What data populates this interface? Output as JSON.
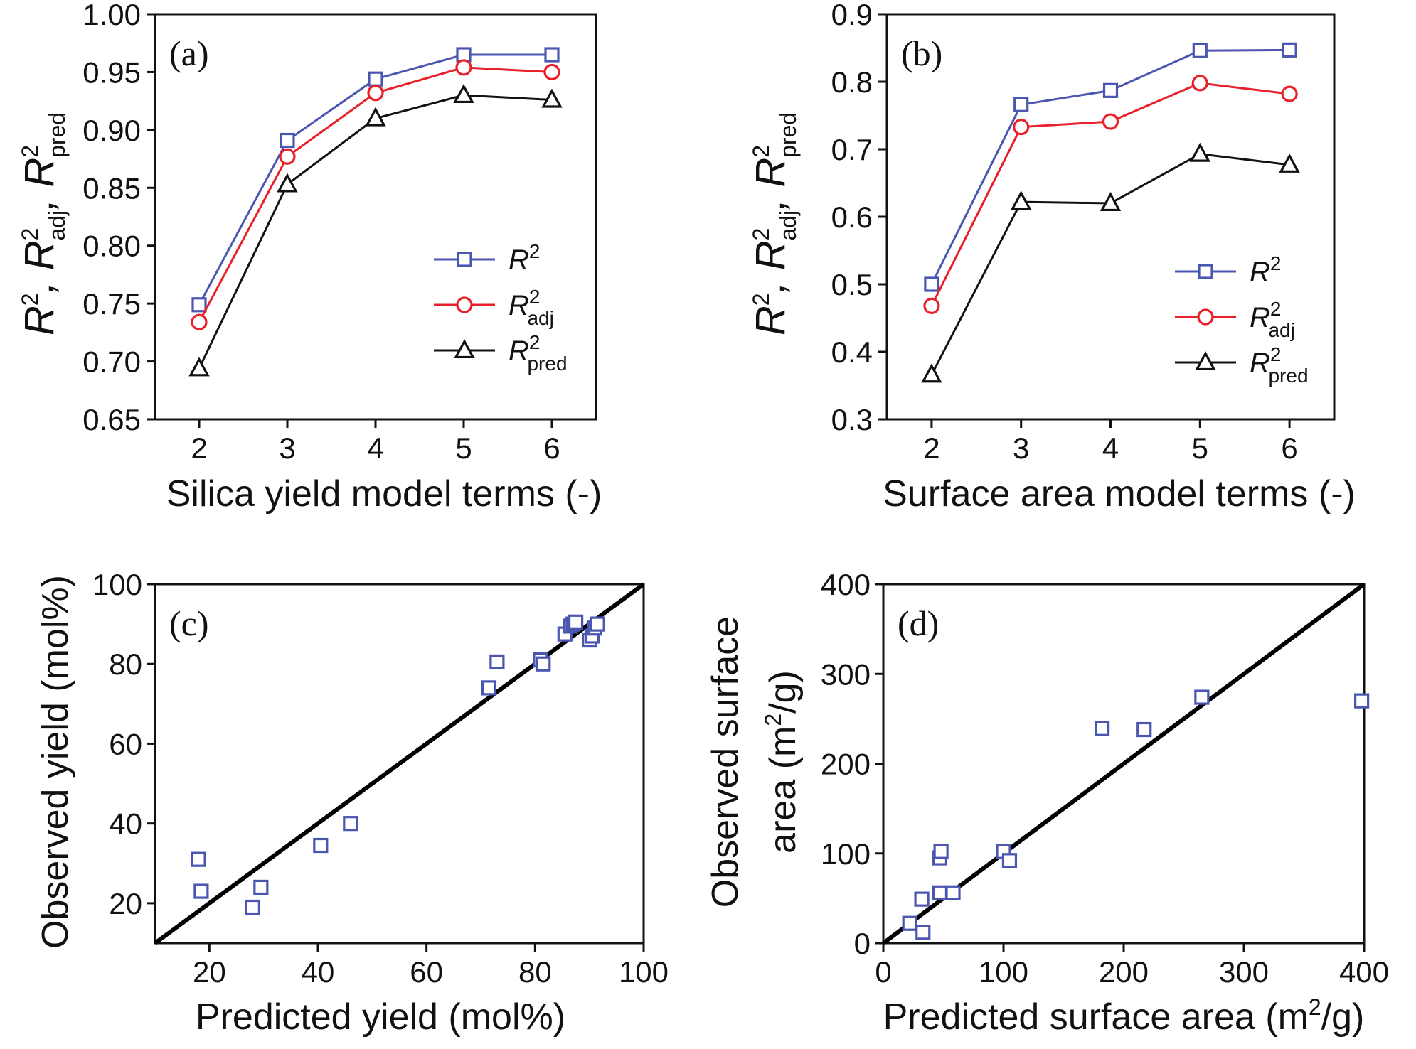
{
  "chart_data": [
    {
      "id": "a",
      "type": "line",
      "panel_label": "(a)",
      "xlabel": "Silica yield model terms (-)",
      "ylabel_parts": [
        "R",
        "2",
        ", ",
        "R",
        "2",
        "adj",
        ", ",
        "R",
        "2",
        "pred"
      ],
      "x": [
        2,
        3,
        4,
        5,
        6
      ],
      "xlim": [
        1.5,
        6.5
      ],
      "ylim": [
        0.65,
        1.0
      ],
      "xticks": [
        "2",
        "3",
        "4",
        "5",
        "6"
      ],
      "yticks": [
        "0.65",
        "0.70",
        "0.75",
        "0.80",
        "0.85",
        "0.90",
        "0.95",
        "1.00"
      ],
      "legend_position": "center-right",
      "series": [
        {
          "name": "R2",
          "label": "R",
          "sup": "2",
          "sub": "",
          "color": "#4a56b0",
          "marker": "square",
          "values": [
            0.749,
            0.891,
            0.944,
            0.965,
            0.965
          ]
        },
        {
          "name": "R2adj",
          "label": "R",
          "sup": "2",
          "sub": "adj",
          "color": "#e8202a",
          "marker": "circle",
          "values": [
            0.734,
            0.877,
            0.932,
            0.954,
            0.95
          ]
        },
        {
          "name": "R2pred",
          "label": "R",
          "sup": "2",
          "sub": "pred",
          "color": "#111111",
          "marker": "triangle",
          "values": [
            0.694,
            0.853,
            0.91,
            0.93,
            0.926
          ]
        }
      ]
    },
    {
      "id": "b",
      "type": "line",
      "panel_label": "(b)",
      "xlabel": "Surface area model terms (-)",
      "ylabel_parts": [
        "R",
        "2",
        ", ",
        "R",
        "2",
        "adj",
        ", ",
        "R",
        "2",
        "pred"
      ],
      "x": [
        2,
        3,
        4,
        5,
        6
      ],
      "xlim": [
        1.5,
        6.5
      ],
      "ylim": [
        0.3,
        0.9
      ],
      "xticks": [
        "2",
        "3",
        "4",
        "5",
        "6"
      ],
      "yticks": [
        "0.3",
        "0.4",
        "0.5",
        "0.6",
        "0.7",
        "0.8",
        "0.9"
      ],
      "legend_position": "lower-right",
      "series": [
        {
          "name": "R2",
          "label": "R",
          "sup": "2",
          "sub": "",
          "color": "#4a56b0",
          "marker": "square",
          "values": [
            0.5,
            0.766,
            0.787,
            0.846,
            0.847
          ]
        },
        {
          "name": "R2adj",
          "label": "R",
          "sup": "2",
          "sub": "adj",
          "color": "#e8202a",
          "marker": "circle",
          "values": [
            0.468,
            0.733,
            0.741,
            0.798,
            0.782
          ]
        },
        {
          "name": "R2pred",
          "label": "R",
          "sup": "2",
          "sub": "pred",
          "color": "#111111",
          "marker": "triangle",
          "values": [
            0.366,
            0.622,
            0.62,
            0.693,
            0.677
          ]
        }
      ]
    },
    {
      "id": "c",
      "type": "scatter",
      "panel_label": "(c)",
      "xlabel": "Predicted yield (mol%)",
      "ylabel": "Observed yield (mol%)",
      "xlim": [
        10,
        100
      ],
      "ylim": [
        10,
        100
      ],
      "xticks": [
        20,
        40,
        60,
        80,
        100
      ],
      "yticks": [
        20,
        40,
        60,
        80,
        100
      ],
      "marker_color": "#4a56b0",
      "line_color": "#000000",
      "parity_line": [
        [
          10,
          10
        ],
        [
          100,
          100
        ]
      ],
      "points": [
        [
          18,
          31
        ],
        [
          18.5,
          23
        ],
        [
          28,
          19
        ],
        [
          29.5,
          24
        ],
        [
          40.5,
          34.5
        ],
        [
          46,
          40
        ],
        [
          71.5,
          74
        ],
        [
          73,
          80.5
        ],
        [
          81,
          81
        ],
        [
          81.5,
          80
        ],
        [
          85.5,
          87.5
        ],
        [
          86.5,
          89.5
        ],
        [
          87,
          90
        ],
        [
          87.5,
          90.5
        ],
        [
          90,
          86
        ],
        [
          90.5,
          87
        ],
        [
          91,
          89
        ],
        [
          91.5,
          90
        ]
      ]
    },
    {
      "id": "d",
      "type": "scatter",
      "panel_label": "(d)",
      "xlabel_parts": [
        "Predicted surface area (m",
        "2",
        "/g)"
      ],
      "ylabel_line1": "Observed surface",
      "ylabel_line2_parts": [
        "area (m",
        "2",
        "/g)"
      ],
      "xlim": [
        0,
        400
      ],
      "ylim": [
        0,
        400
      ],
      "xticks": [
        0,
        100,
        200,
        300,
        400
      ],
      "yticks": [
        0,
        100,
        200,
        300,
        400
      ],
      "marker_color": "#4a56b0",
      "line_color": "#000000",
      "parity_line": [
        [
          0,
          0
        ],
        [
          400,
          400
        ]
      ],
      "points": [
        [
          22,
          22
        ],
        [
          33,
          12
        ],
        [
          32,
          49
        ],
        [
          47,
          56
        ],
        [
          58,
          56
        ],
        [
          47,
          95
        ],
        [
          48,
          102
        ],
        [
          100,
          102
        ],
        [
          105,
          92
        ],
        [
          182,
          239
        ],
        [
          217,
          238
        ],
        [
          265,
          274
        ],
        [
          398,
          270
        ]
      ]
    }
  ]
}
